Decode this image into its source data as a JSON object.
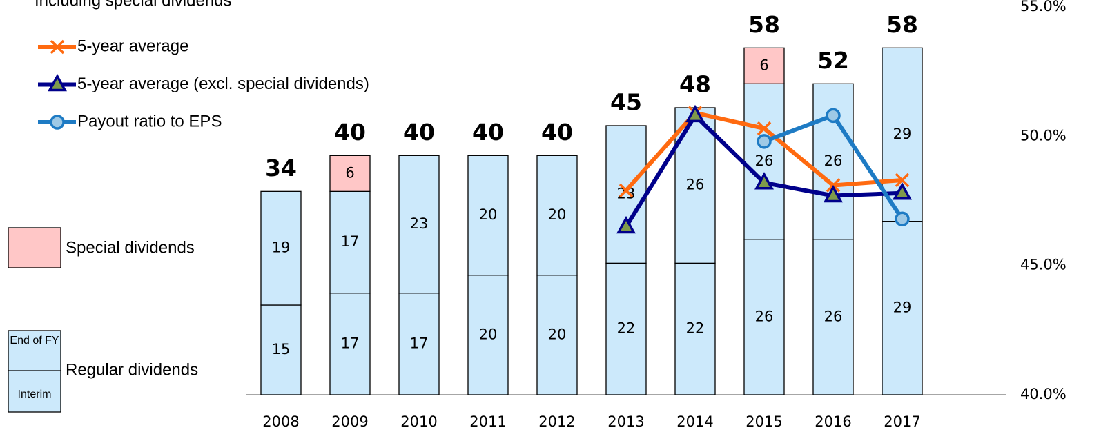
{
  "chart_data": {
    "type": "bar",
    "subtitle": "Including special dividends",
    "categories": [
      "2008",
      "2009",
      "2010",
      "2011",
      "2012",
      "2013",
      "2014",
      "2015",
      "2016",
      "2017"
    ],
    "series": [
      {
        "name": "Interim",
        "color": "#cce9fb",
        "values": [
          15,
          17,
          17,
          20,
          20,
          22,
          22,
          26,
          26,
          29
        ]
      },
      {
        "name": "End of FY",
        "color": "#cce9fb",
        "values": [
          19,
          17,
          23,
          20,
          20,
          23,
          26,
          26,
          26,
          29
        ]
      },
      {
        "name": "Special dividends",
        "color": "#ffc7c7",
        "values": [
          null,
          6,
          null,
          null,
          null,
          null,
          null,
          6,
          null,
          null
        ]
      }
    ],
    "totals": [
      34,
      40,
      40,
      40,
      40,
      45,
      48,
      58,
      52,
      58
    ],
    "regular_label": "Regular dividends",
    "lines": [
      {
        "name": "5-year average",
        "color": "#ff6a10",
        "marker": "x",
        "axis": "y2",
        "values": [
          null,
          null,
          null,
          null,
          null,
          47.9,
          50.9,
          50.3,
          48.1,
          48.3
        ]
      },
      {
        "name": "5-year average (excl. special dividends)",
        "color": "#00008b",
        "marker": "triangle",
        "axis": "y2",
        "values": [
          null,
          null,
          null,
          null,
          null,
          46.5,
          50.8,
          48.2,
          47.7,
          47.8
        ]
      },
      {
        "name": "Payout ratio to EPS",
        "color": "#1e7bc4",
        "marker": "circle",
        "axis": "y2",
        "values": [
          null,
          null,
          null,
          null,
          null,
          null,
          null,
          49.8,
          50.8,
          46.8
        ]
      }
    ],
    "ylim": [
      0,
      66
    ],
    "y2lim": [
      40,
      55
    ],
    "y2ticks": [
      {
        "value": 40,
        "label": "40.0%"
      },
      {
        "value": 45,
        "label": "45.0%"
      },
      {
        "value": 50,
        "label": "50.0%"
      },
      {
        "value": 55,
        "label": "55.0%"
      }
    ]
  }
}
